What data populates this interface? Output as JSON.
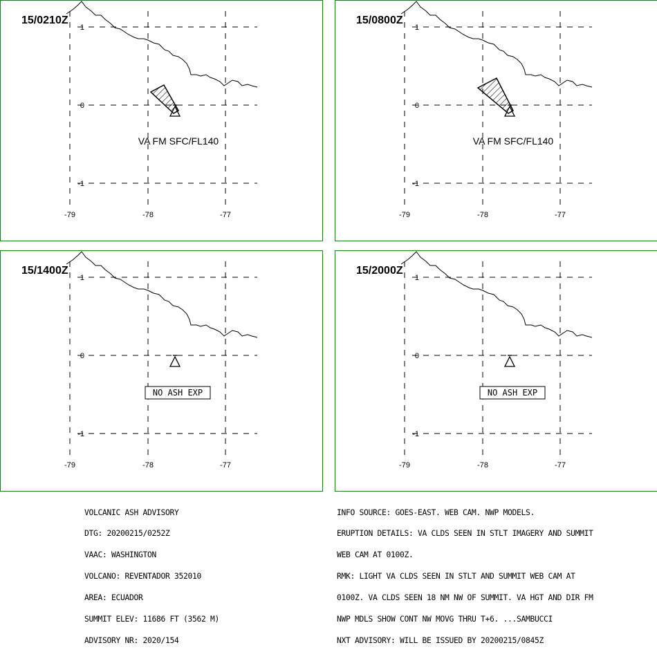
{
  "panels": [
    {
      "title": "15/0210Z",
      "va_label": "VA FM SFC/FL140",
      "ash_cloud": true,
      "cloud_size": "small"
    },
    {
      "title": "15/0800Z",
      "va_label": "VA FM SFC/FL140",
      "ash_cloud": true,
      "cloud_size": "large"
    },
    {
      "title": "15/1400Z",
      "va_label": "NO ASH EXP",
      "ash_cloud": false
    },
    {
      "title": "15/2000Z",
      "va_label": "NO ASH EXP",
      "ash_cloud": false
    }
  ],
  "axes": {
    "lon_ticks": [
      "-79",
      "-78",
      "-77"
    ],
    "lat_ticks": [
      "1",
      "0",
      "-1"
    ]
  },
  "advisory_left": [
    "VOLCANIC ASH ADVISORY",
    "DTG: 20200215/0252Z",
    "VAAC: WASHINGTON",
    "VOLCANO: REVENTADOR 352010",
    "AREA: ECUADOR",
    "SUMMIT ELEV: 11686 FT (3562 M)",
    "ADVISORY NR: 2020/154"
  ],
  "advisory_right": [
    "INFO SOURCE: GOES-EAST. WEB CAM. NWP MODELS.",
    "ERUPTION DETAILS: VA CLDS SEEN IN STLT IMAGERY AND SUMMIT",
    "WEB CAM AT 0100Z.",
    "RMK: LIGHT VA CLDS SEEN IN STLT AND SUMMIT WEB CAM AT",
    "0100Z. VA CLDS SEEN 18 NM NW OF SUMMIT. VA HGT AND DIR FM",
    "NWP MDLS SHOW CONT NW MOVG THRU T+6. ...SAMBUCCI",
    "NXT ADVISORY: WILL BE ISSUED BY 20200215/0845Z"
  ],
  "colors": {
    "panel_border": "#1f7a1f",
    "ink": "#000000",
    "background": "#ffffff"
  },
  "icons": {
    "volcano": "volcano-triangle-icon"
  }
}
